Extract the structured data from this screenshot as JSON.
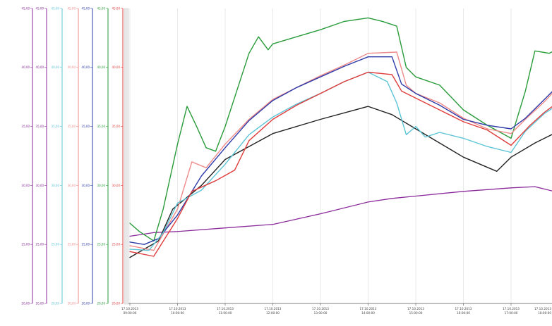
{
  "chart_data": {
    "type": "line",
    "title": "",
    "xlabel": "",
    "ylabel": "",
    "ylim": [
      20,
      45
    ],
    "y_ticks": [
      "20,00",
      "25,00",
      "30,00",
      "35,00",
      "40,00",
      "45,00"
    ],
    "grid": "vertical",
    "legend": "none",
    "x_date": "17.10.2013",
    "x_ticks": [
      {
        "date": "17.10.2013",
        "time": "09:00:00"
      },
      {
        "date": "17.10.2013",
        "time": "10:00:00"
      },
      {
        "date": "17.10.2013",
        "time": "11:00:00"
      },
      {
        "date": "17.10.2013",
        "time": "12:00:00"
      },
      {
        "date": "17.10.2013",
        "time": "13:00:00"
      },
      {
        "date": "17.10.2013",
        "time": "14:00:00"
      },
      {
        "date": "17.10.2013",
        "time": "15:00:00"
      },
      {
        "date": "17.10.2013",
        "time": "16:00:00"
      },
      {
        "date": "17.10.2013",
        "time": "17:00:00"
      },
      {
        "date": "17.10.2013",
        "time": "18:00:00"
      }
    ],
    "series": [
      {
        "color": "#8b2a9b",
        "values": [
          [
            9.0,
            25.7
          ],
          [
            9.5,
            26.0
          ],
          [
            10.0,
            26.1
          ],
          [
            11.0,
            26.4
          ],
          [
            12.0,
            26.7
          ],
          [
            13.0,
            27.6
          ],
          [
            14.0,
            28.6
          ],
          [
            14.5,
            28.9
          ],
          [
            15.0,
            29.1
          ],
          [
            16.0,
            29.5
          ],
          [
            17.0,
            29.8
          ],
          [
            17.5,
            29.9
          ],
          [
            18.0,
            29.4
          ]
        ]
      },
      {
        "color": "#222222",
        "values": [
          [
            9.0,
            23.9
          ],
          [
            9.3,
            24.6
          ],
          [
            9.6,
            25.3
          ],
          [
            9.9,
            28.0
          ],
          [
            10.5,
            30.0
          ],
          [
            11.0,
            32.2
          ],
          [
            12.0,
            34.4
          ],
          [
            13.0,
            35.6
          ],
          [
            14.0,
            36.7
          ],
          [
            14.5,
            36.0
          ],
          [
            15.0,
            34.8
          ],
          [
            15.5,
            33.6
          ],
          [
            16.0,
            32.4
          ],
          [
            16.7,
            31.2
          ],
          [
            17.0,
            32.4
          ],
          [
            17.5,
            33.6
          ],
          [
            18.0,
            34.6
          ]
        ]
      },
      {
        "color": "#2a9b3a",
        "values": [
          [
            9.0,
            26.8
          ],
          [
            9.2,
            26.1
          ],
          [
            9.5,
            25.3
          ],
          [
            9.7,
            28.0
          ],
          [
            10.0,
            33.5
          ],
          [
            10.2,
            36.7
          ],
          [
            10.4,
            35.0
          ],
          [
            10.6,
            33.2
          ],
          [
            10.8,
            32.9
          ],
          [
            11.0,
            35.0
          ],
          [
            11.5,
            41.2
          ],
          [
            11.7,
            42.6
          ],
          [
            11.9,
            41.5
          ],
          [
            12.0,
            42.0
          ],
          [
            12.5,
            42.6
          ],
          [
            13.0,
            43.2
          ],
          [
            13.5,
            43.9
          ],
          [
            14.0,
            44.2
          ],
          [
            14.3,
            43.9
          ],
          [
            14.6,
            43.5
          ],
          [
            14.8,
            40.0
          ],
          [
            15.0,
            39.2
          ],
          [
            15.5,
            38.5
          ],
          [
            16.0,
            36.4
          ],
          [
            16.5,
            35.1
          ],
          [
            17.0,
            34.0
          ],
          [
            17.3,
            38.0
          ],
          [
            17.5,
            41.4
          ],
          [
            17.8,
            41.2
          ],
          [
            18.0,
            41.6
          ],
          [
            18.3,
            42.3
          ]
        ]
      },
      {
        "color": "#ef8a8a",
        "values": [
          [
            9.0,
            24.9
          ],
          [
            9.5,
            24.5
          ],
          [
            10.0,
            28.0
          ],
          [
            10.3,
            32.0
          ],
          [
            10.6,
            31.5
          ],
          [
            11.0,
            33.5
          ],
          [
            11.5,
            35.6
          ],
          [
            12.0,
            37.3
          ],
          [
            12.5,
            38.3
          ],
          [
            13.0,
            39.3
          ],
          [
            13.5,
            40.2
          ],
          [
            14.0,
            41.2
          ],
          [
            14.6,
            41.3
          ],
          [
            14.8,
            38.5
          ],
          [
            15.0,
            37.8
          ],
          [
            15.5,
            37.0
          ],
          [
            16.0,
            35.7
          ],
          [
            16.5,
            34.8
          ],
          [
            17.0,
            34.4
          ],
          [
            17.3,
            35.6
          ],
          [
            17.7,
            37.1
          ],
          [
            18.0,
            38.4
          ],
          [
            18.3,
            39.3
          ]
        ]
      },
      {
        "color": "#2d3aa8",
        "values": [
          [
            9.0,
            25.2
          ],
          [
            9.3,
            25.0
          ],
          [
            9.6,
            25.5
          ],
          [
            10.0,
            27.5
          ],
          [
            10.5,
            30.8
          ],
          [
            11.0,
            33.2
          ],
          [
            11.5,
            35.5
          ],
          [
            12.0,
            37.2
          ],
          [
            12.5,
            38.3
          ],
          [
            13.0,
            39.2
          ],
          [
            13.5,
            40.1
          ],
          [
            14.0,
            40.9
          ],
          [
            14.5,
            40.9
          ],
          [
            14.7,
            38.6
          ],
          [
            15.0,
            37.8
          ],
          [
            15.5,
            36.8
          ],
          [
            16.0,
            35.6
          ],
          [
            16.5,
            35.1
          ],
          [
            17.0,
            34.8
          ],
          [
            17.3,
            35.7
          ],
          [
            17.7,
            37.3
          ],
          [
            18.0,
            38.5
          ],
          [
            18.3,
            39.4
          ]
        ]
      },
      {
        "color": "#5cc4d6",
        "values": [
          [
            9.0,
            24.6
          ],
          [
            9.4,
            24.5
          ],
          [
            9.7,
            26.0
          ],
          [
            10.0,
            28.5
          ],
          [
            10.5,
            29.6
          ],
          [
            11.0,
            31.8
          ],
          [
            11.5,
            34.3
          ],
          [
            12.0,
            35.8
          ],
          [
            12.5,
            36.9
          ],
          [
            13.0,
            37.8
          ],
          [
            13.5,
            38.8
          ],
          [
            14.0,
            39.6
          ],
          [
            14.4,
            38.8
          ],
          [
            14.6,
            37.0
          ],
          [
            14.8,
            34.3
          ],
          [
            15.0,
            35.0
          ],
          [
            15.2,
            34.1
          ],
          [
            15.5,
            34.5
          ],
          [
            16.0,
            34.0
          ],
          [
            16.5,
            33.3
          ],
          [
            17.0,
            32.8
          ],
          [
            17.3,
            34.6
          ],
          [
            17.7,
            36.1
          ],
          [
            18.0,
            36.9
          ],
          [
            18.3,
            37.6
          ]
        ]
      },
      {
        "color": "#e03c3c",
        "values": [
          [
            9.0,
            24.4
          ],
          [
            9.5,
            24.0
          ],
          [
            10.0,
            27.2
          ],
          [
            10.3,
            29.5
          ],
          [
            10.8,
            30.4
          ],
          [
            11.2,
            31.3
          ],
          [
            11.5,
            33.8
          ],
          [
            12.0,
            35.6
          ],
          [
            12.5,
            36.8
          ],
          [
            13.0,
            37.8
          ],
          [
            13.5,
            38.8
          ],
          [
            14.0,
            39.6
          ],
          [
            14.5,
            39.4
          ],
          [
            14.7,
            38.0
          ],
          [
            15.0,
            37.4
          ],
          [
            15.5,
            36.4
          ],
          [
            16.0,
            35.4
          ],
          [
            16.5,
            34.7
          ],
          [
            17.0,
            33.4
          ],
          [
            17.4,
            35.1
          ],
          [
            17.7,
            36.2
          ],
          [
            18.0,
            37.1
          ],
          [
            18.3,
            37.8
          ]
        ]
      }
    ]
  },
  "axis_colors": [
    "#8b2a9b",
    "#5cc4d6",
    "#ef8a8a",
    "#2d3aa8",
    "#2a9b3a",
    "#e03c3c"
  ]
}
